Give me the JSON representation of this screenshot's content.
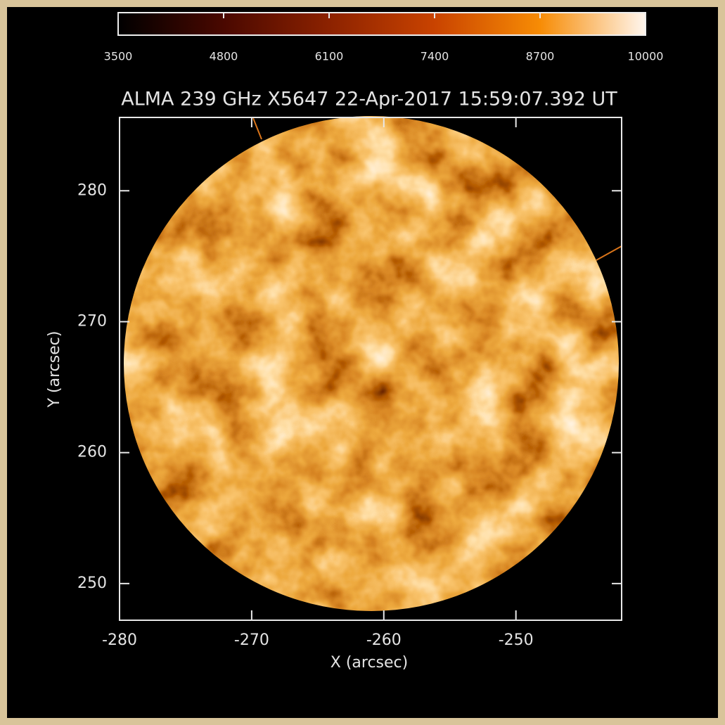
{
  "chart_data": {
    "type": "image",
    "title": "ALMA 239 GHz X5647 22-Apr-2017 15:59:07.392 UT",
    "x_label": "X (arcsec)",
    "y_label": "Y (arcsec)",
    "xlim": [
      -280,
      -242
    ],
    "xticks": [
      -280,
      -270,
      -260,
      -250
    ],
    "ylim": [
      247.2,
      285.6
    ],
    "yticks": [
      250,
      260,
      270,
      280
    ],
    "colorbar": {
      "lim": [
        3500,
        10000
      ],
      "ticks": [
        3500,
        4800,
        6100,
        7400,
        8700,
        10000
      ],
      "colors": [
        "#000000",
        "#4a0800",
        "#8c2200",
        "#c94300",
        "#f78c05",
        "#fff6ee"
      ]
    }
  }
}
